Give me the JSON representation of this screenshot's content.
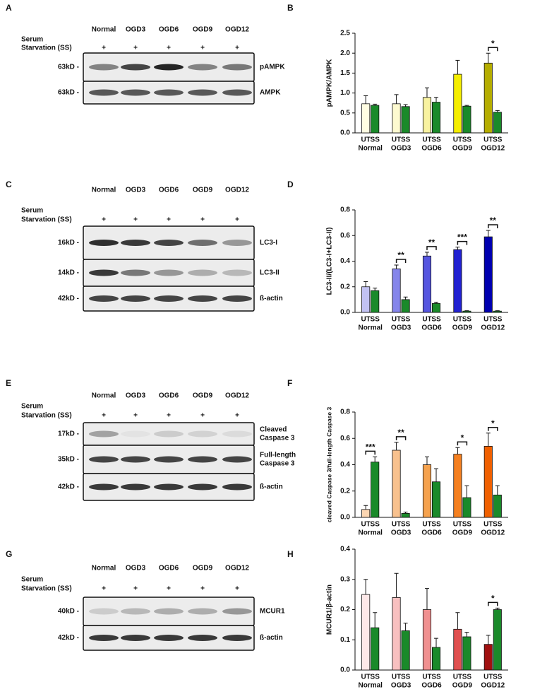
{
  "chart_data": [
    {
      "type": "bar",
      "panel": "B",
      "ylabel": "pAMPK/AMPK",
      "categories": [
        "Normal",
        "OGD3",
        "OGD6",
        "OGD9",
        "OGD12"
      ],
      "series": [
        {
          "name": "UT",
          "colors": [
            "#fffde2",
            "#fdfad0",
            "#f8f2a0",
            "#f5ee00",
            "#b5ad00"
          ],
          "values": [
            0.73,
            0.73,
            0.89,
            1.47,
            1.75
          ],
          "errors": [
            0.2,
            0.23,
            0.24,
            0.35,
            0.25
          ]
        },
        {
          "name": "SS",
          "color": "#1a8a2a",
          "values": [
            0.69,
            0.66,
            0.77,
            0.67,
            0.52
          ],
          "errors": [
            0.03,
            0.05,
            0.12,
            0.02,
            0.04
          ]
        }
      ],
      "ylim": [
        0,
        2.5
      ],
      "yticks": [
        {
          "value": 0,
          "label": "0.0"
        },
        0.5,
        {
          "value": 1,
          "label": "1.0"
        },
        1.5,
        {
          "value": 2,
          "label": "2.0"
        },
        2.5
      ],
      "annotations": [
        null,
        null,
        null,
        null,
        "*"
      ]
    },
    {
      "type": "bar",
      "panel": "D",
      "ylabel": "LC3-II/(LC3-I+LC3-II)",
      "categories": [
        "Normal",
        "OGD3",
        "OGD6",
        "OGD9",
        "OGD12"
      ],
      "series": [
        {
          "name": "UT",
          "colors": [
            "#c2c2f2",
            "#8585ea",
            "#5656e0",
            "#2222d2",
            "#0000b0"
          ],
          "values": [
            0.2,
            0.34,
            0.44,
            0.49,
            0.59
          ],
          "errors": [
            0.04,
            0.03,
            0.03,
            0.02,
            0.05
          ]
        },
        {
          "name": "SS",
          "color": "#1a8a2a",
          "values": [
            0.17,
            0.1,
            0.07,
            0.01,
            0.01
          ],
          "errors": [
            0.02,
            0.02,
            0.01,
            0.003,
            0.003
          ]
        }
      ],
      "ylim": [
        0,
        0.8
      ],
      "yticks": [
        {
          "value": 0,
          "label": "0.0"
        },
        0.2,
        0.4,
        0.6,
        0.8
      ],
      "annotations": [
        null,
        "**",
        "**",
        "***",
        "**"
      ]
    },
    {
      "type": "bar",
      "panel": "F",
      "ylabel": "cleaved Caspase 3/full-length Caspase 3",
      "categories": [
        "Normal",
        "OGD3",
        "OGD6",
        "OGD9",
        "OGD12"
      ],
      "series": [
        {
          "name": "UT",
          "colors": [
            "#fcd6b2",
            "#f8c18e",
            "#f5a24e",
            "#f58020",
            "#f06000"
          ],
          "values": [
            0.06,
            0.51,
            0.4,
            0.48,
            0.54
          ],
          "errors": [
            0.03,
            0.06,
            0.06,
            0.05,
            0.1
          ]
        },
        {
          "name": "SS",
          "color": "#1a8a2a",
          "values": [
            0.42,
            0.03,
            0.27,
            0.15,
            0.17
          ],
          "errors": [
            0.04,
            0.01,
            0.1,
            0.09,
            0.07
          ]
        }
      ],
      "ylim": [
        0,
        0.8
      ],
      "yticks": [
        {
          "value": 0,
          "label": "0.0"
        },
        0.2,
        0.4,
        0.6,
        0.8
      ],
      "annotations": [
        "***",
        "**",
        null,
        "*",
        "*"
      ]
    },
    {
      "type": "bar",
      "panel": "H",
      "ylabel": "MCUR1/β-actin",
      "categories": [
        "Normal",
        "OGD3",
        "OGD6",
        "OGD9",
        "OGD12"
      ],
      "series": [
        {
          "name": "UT",
          "colors": [
            "#fde8e8",
            "#f8c0c0",
            "#f09090",
            "#e05050",
            "#a01010"
          ],
          "values": [
            0.25,
            0.24,
            0.2,
            0.135,
            0.085
          ],
          "errors": [
            0.05,
            0.08,
            0.07,
            0.055,
            0.03
          ]
        },
        {
          "name": "SS",
          "color": "#1a8a2a",
          "values": [
            0.14,
            0.13,
            0.075,
            0.11,
            0.2
          ],
          "errors": [
            0.05,
            0.025,
            0.03,
            0.015,
            0.005
          ]
        }
      ],
      "ylim": [
        0,
        0.4
      ],
      "yticks": [
        {
          "value": 0,
          "label": "0.0"
        },
        0.1,
        0.2,
        0.3,
        0.4
      ],
      "annotations": [
        null,
        null,
        null,
        null,
        "*"
      ]
    }
  ],
  "blots": [
    {
      "panel": "A",
      "lanes": [
        "Normal",
        "OGD3",
        "OGD6",
        "OGD9",
        "OGD12"
      ],
      "treatment_label": [
        "Serum",
        "Starvation (SS)"
      ],
      "treatment_marks": [
        "+",
        "+",
        "+",
        "+",
        "+"
      ],
      "rows": [
        {
          "size": "63kD -",
          "protein": [
            "pAMPK"
          ]
        },
        {
          "size": "63kD -",
          "protein": [
            "AMPK"
          ]
        }
      ]
    },
    {
      "panel": "C",
      "lanes": [
        "Normal",
        "OGD3",
        "OGD6",
        "OGD9",
        "OGD12"
      ],
      "treatment_label": [
        "Serum",
        "Starvation (SS)"
      ],
      "treatment_marks": [
        "+",
        "+",
        "+",
        "+",
        "+"
      ],
      "rows": [
        {
          "size": "16kD -",
          "protein": [
            "LC3-I"
          ]
        },
        {
          "size": "14kD -",
          "protein": [
            "LC3-II"
          ]
        },
        {
          "size": "42kD -",
          "protein": [
            "ß-actin"
          ]
        }
      ]
    },
    {
      "panel": "E",
      "lanes": [
        "Normal",
        "OGD3",
        "OGD6",
        "OGD9",
        "OGD12"
      ],
      "treatment_label": [
        "Serum",
        "Starvation (SS)"
      ],
      "treatment_marks": [
        "+",
        "+",
        "+",
        "+",
        "+"
      ],
      "rows": [
        {
          "size": "17kD -",
          "protein": [
            "Cleaved",
            "Caspase 3"
          ]
        },
        {
          "size": "35kD -",
          "protein": [
            "Full-length",
            "Caspase 3"
          ]
        },
        {
          "size": "42kD -",
          "protein": [
            "ß-actin"
          ]
        }
      ]
    },
    {
      "panel": "G",
      "lanes": [
        "Normal",
        "OGD3",
        "OGD6",
        "OGD9",
        "OGD12"
      ],
      "treatment_label": [
        "Serum",
        "Starvation (SS)"
      ],
      "treatment_marks": [
        "+",
        "+",
        "+",
        "+",
        "+"
      ],
      "rows": [
        {
          "size": "40kD -",
          "protein": [
            "MCUR1"
          ]
        },
        {
          "size": "42kD -",
          "protein": [
            "ß-actin"
          ]
        }
      ]
    }
  ]
}
